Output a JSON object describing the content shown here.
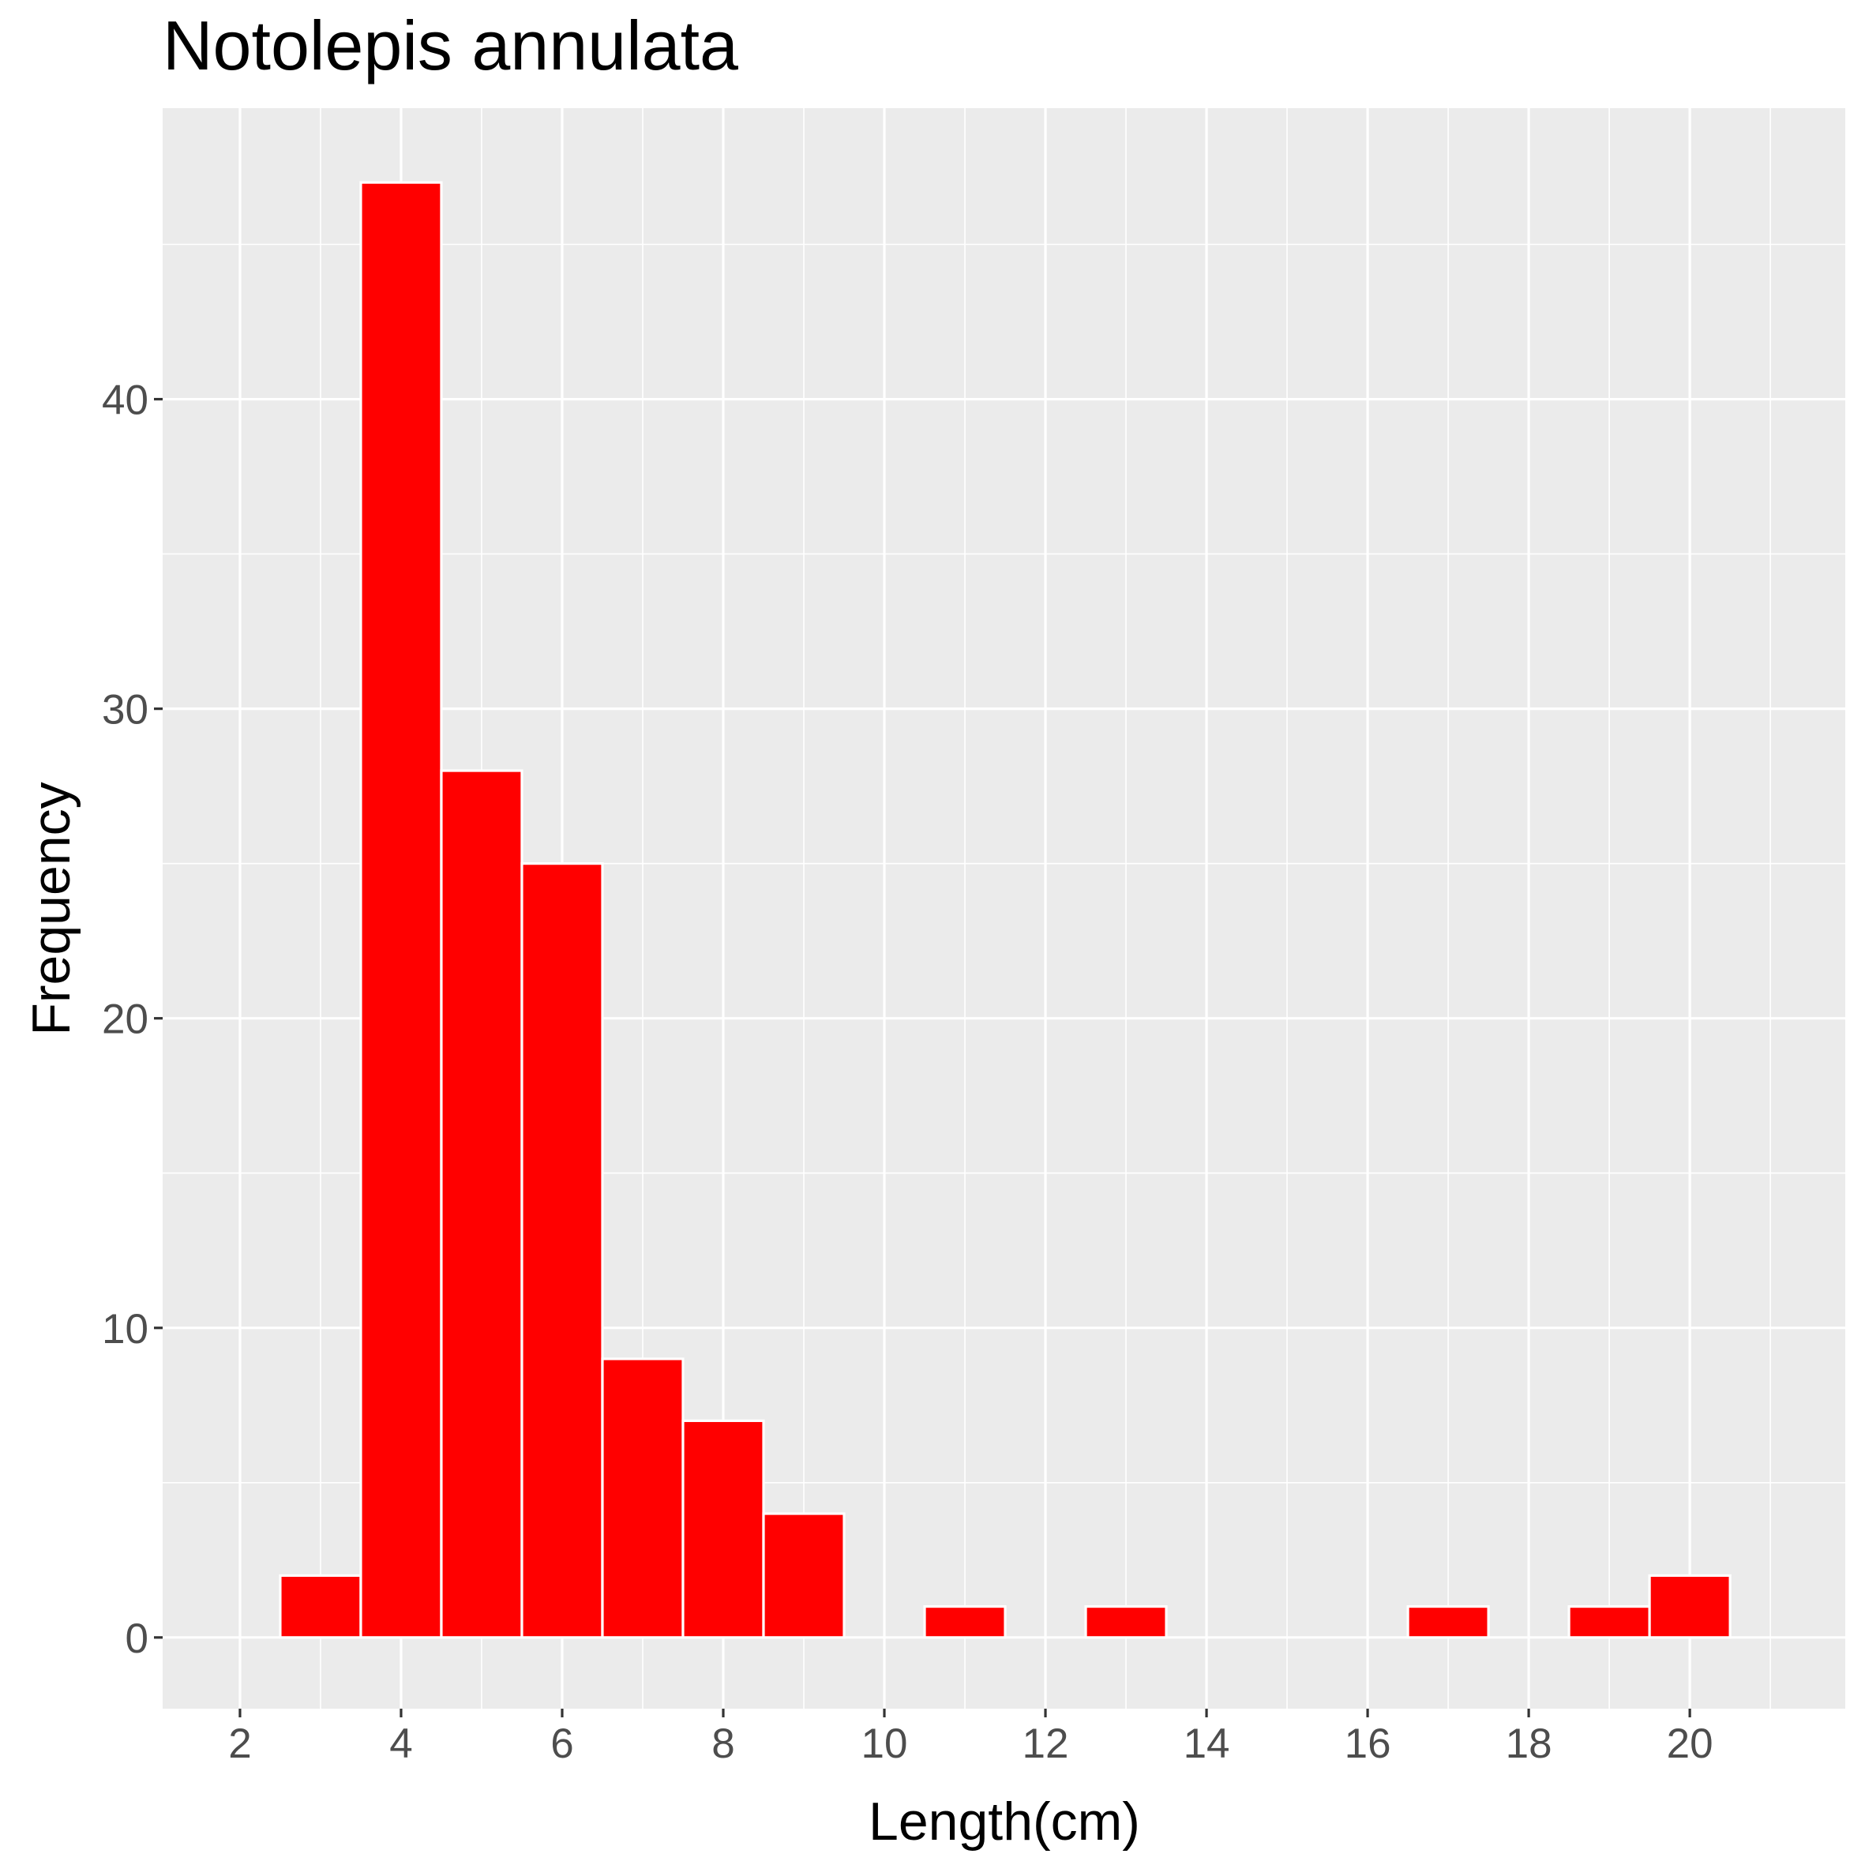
{
  "chart_data": {
    "type": "bar",
    "title": "Notolepis annulata",
    "xlabel": "Length(cm)",
    "ylabel": "Frequency",
    "x": [
      3,
      4,
      5,
      6,
      7,
      8,
      9,
      11,
      13,
      17,
      19,
      20
    ],
    "values": [
      2,
      47,
      28,
      25,
      9,
      7,
      4,
      1,
      1,
      1,
      1,
      2
    ],
    "bin_width": 1,
    "xlim": [
      1.04,
      21.93
    ],
    "ylim": [
      -2.3,
      49.4
    ],
    "xticks": [
      2,
      4,
      6,
      8,
      10,
      12,
      14,
      16,
      18,
      20
    ],
    "yticks": [
      0,
      10,
      20,
      30,
      40
    ],
    "grid": true,
    "colors": {
      "bar": "#FF0000",
      "bar_outline": "#FFFFFF",
      "panel": "#EBEBEB",
      "grid": "#FFFFFF"
    }
  }
}
